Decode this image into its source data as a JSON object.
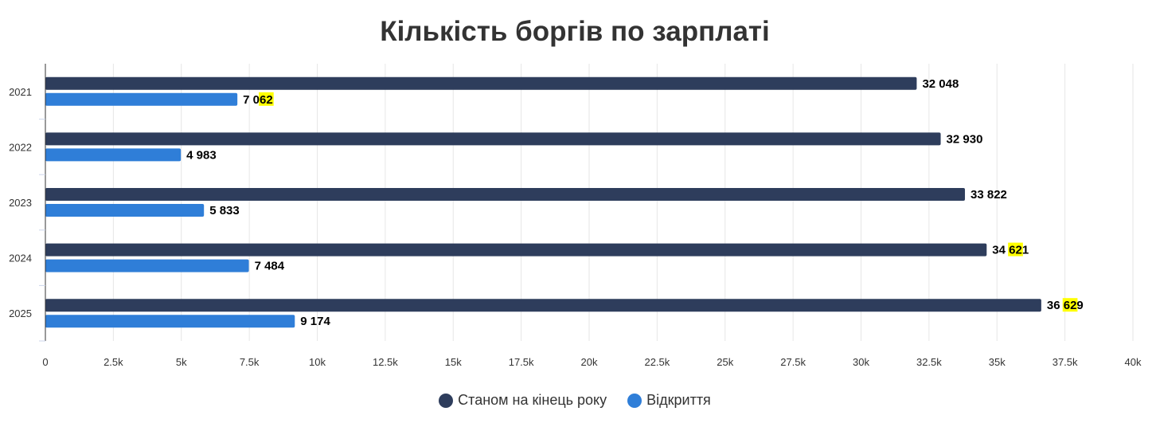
{
  "chart_data": {
    "type": "bar",
    "orientation": "horizontal",
    "title": "Кількість боргів по зарплаті",
    "categories": [
      "2021",
      "2022",
      "2023",
      "2024",
      "2025"
    ],
    "series": [
      {
        "name": "Станом на кінець року",
        "color": "#2e3d5c",
        "values": [
          32048,
          32930,
          33822,
          34621,
          36629
        ],
        "labels": [
          "32 048",
          "32 930",
          "33 822",
          "34 621",
          "36 629"
        ]
      },
      {
        "name": "Відкриття",
        "color": "#2f7ed8",
        "values": [
          7062,
          4983,
          5833,
          7484,
          9174
        ],
        "labels": [
          "7 062",
          "4 983",
          "5 833",
          "7 484",
          "9 174"
        ]
      }
    ],
    "xlim": [
      0,
      40000
    ],
    "x_ticks": [
      {
        "value": 0,
        "label": "0"
      },
      {
        "value": 2500,
        "label": "2.5k"
      },
      {
        "value": 5000,
        "label": "5k"
      },
      {
        "value": 7500,
        "label": "7.5k"
      },
      {
        "value": 10000,
        "label": "10k"
      },
      {
        "value": 12500,
        "label": "12.5k"
      },
      {
        "value": 15000,
        "label": "15k"
      },
      {
        "value": 17500,
        "label": "17.5k"
      },
      {
        "value": 20000,
        "label": "20k"
      },
      {
        "value": 22500,
        "label": "22.5k"
      },
      {
        "value": 25000,
        "label": "25k"
      },
      {
        "value": 27500,
        "label": "27.5k"
      },
      {
        "value": 30000,
        "label": "30k"
      },
      {
        "value": 32500,
        "label": "32.5k"
      },
      {
        "value": 35000,
        "label": "35k"
      },
      {
        "value": 37500,
        "label": "37.5k"
      },
      {
        "value": 40000,
        "label": "40k"
      }
    ],
    "grid": true,
    "legend": "bottom-center",
    "highlight_color": "#ffff00"
  }
}
